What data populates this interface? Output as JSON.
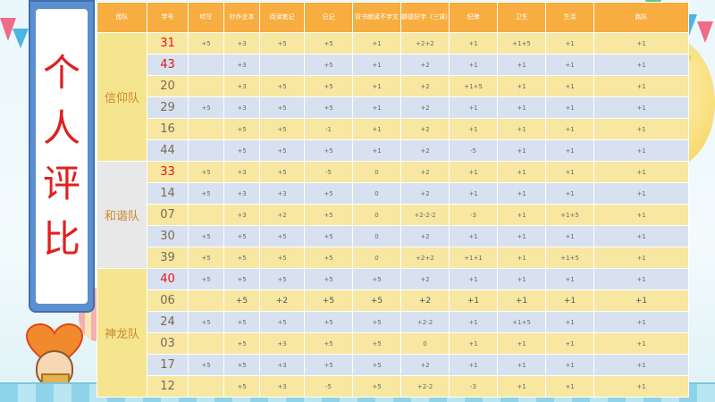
{
  "title_chars": [
    "个",
    "人",
    "评",
    "比"
  ],
  "colors": {
    "header": "#f7ad3f",
    "row_yellow": "#f7e7a0",
    "row_blue": "#d7e1f0",
    "title_red": "#e02020",
    "panel_blue": "#5b8fd0"
  },
  "headers": [
    "团队",
    "学号",
    "听写",
    "抄作业本",
    "阅读笔记",
    "日记",
    "背书朗读不字文",
    "挪德好字（三课）",
    "纪律",
    "卫生",
    "生活",
    "路队"
  ],
  "teams": [
    {
      "name": "信仰队",
      "rows": [
        {
          "id": "31",
          "red": true,
          "cells": [
            "+5",
            "+3",
            "+5",
            "+5",
            "+1",
            "+2+2",
            "+1",
            "+1+5",
            "+1",
            "+1"
          ]
        },
        {
          "id": "43",
          "red": true,
          "cells": [
            "",
            "+3",
            "",
            "+5",
            "+1",
            "+2",
            "+1",
            "+1",
            "+1",
            "+1"
          ]
        },
        {
          "id": "20",
          "red": false,
          "cells": [
            "",
            "+3",
            "+5",
            "+5",
            "+1",
            "+2",
            "+1+5",
            "+1",
            "+1",
            "+1"
          ]
        },
        {
          "id": "29",
          "red": false,
          "cells": [
            "+5",
            "+3",
            "+5",
            "+5",
            "+1",
            "+2",
            "+1",
            "+1",
            "+1",
            "+1"
          ]
        },
        {
          "id": "16",
          "red": false,
          "cells": [
            "",
            "+5",
            "+5",
            "-1",
            "+1",
            "+2",
            "+1",
            "+1",
            "+1",
            "+1"
          ]
        },
        {
          "id": "44",
          "red": false,
          "cells": [
            "",
            "+5",
            "+5",
            "+5",
            "+1",
            "+2",
            "-5",
            "+1",
            "+1",
            "+1"
          ]
        }
      ]
    },
    {
      "name": "和谐队",
      "rows": [
        {
          "id": "33",
          "red": true,
          "cells": [
            "+5",
            "+3",
            "+5",
            "-5",
            "0",
            "+2",
            "+1",
            "+1",
            "+1",
            "+1"
          ]
        },
        {
          "id": "14",
          "red": false,
          "cells": [
            "+5",
            "+3",
            "+3",
            "+5",
            "0",
            "+2",
            "+1",
            "+1",
            "+1",
            "+1"
          ]
        },
        {
          "id": "07",
          "red": false,
          "cells": [
            "",
            "+3",
            "+2",
            "+5",
            "0",
            "+2-2-2",
            "-3",
            "+1",
            "+1+5",
            "+1"
          ]
        },
        {
          "id": "30",
          "red": false,
          "cells": [
            "+5",
            "+5",
            "+5",
            "+5",
            "0",
            "+2",
            "+1",
            "+1",
            "+1",
            "+1"
          ]
        },
        {
          "id": "39",
          "red": false,
          "cells": [
            "+5",
            "+5",
            "+5",
            "+5",
            "0",
            "+2+2",
            "+1+1",
            "+1",
            "+1+5",
            "+1"
          ]
        }
      ]
    },
    {
      "name": "神龙队",
      "rows": [
        {
          "id": "40",
          "red": true,
          "cells": [
            "+5",
            "+5",
            "+5",
            "+5",
            "+5",
            "+2",
            "+1",
            "+1",
            "+1",
            "+1"
          ]
        },
        {
          "id": "06",
          "red": false,
          "bold": true,
          "cells": [
            "",
            "+5",
            "+2",
            "+5",
            "+5",
            "+2",
            "+1",
            "+1",
            "+1",
            "+1"
          ]
        },
        {
          "id": "24",
          "red": false,
          "cells": [
            "+5",
            "+5",
            "+5",
            "+5",
            "+5",
            "+2-2",
            "+1",
            "+1+5",
            "+1",
            "+1"
          ]
        },
        {
          "id": "03",
          "red": false,
          "cells": [
            "",
            "+5",
            "+3",
            "+5",
            "+5",
            "0",
            "+1",
            "+1",
            "+1",
            "+1"
          ]
        },
        {
          "id": "17",
          "red": false,
          "cells": [
            "+5",
            "+5",
            "+3",
            "+5",
            "+5",
            "+2",
            "+1",
            "+1",
            "+1",
            "+1"
          ]
        },
        {
          "id": "12",
          "red": false,
          "cells": [
            "",
            "+5",
            "+3",
            "-5",
            "+5",
            "+2-2",
            "-3",
            "+1",
            "+1",
            "+1"
          ]
        }
      ]
    }
  ]
}
